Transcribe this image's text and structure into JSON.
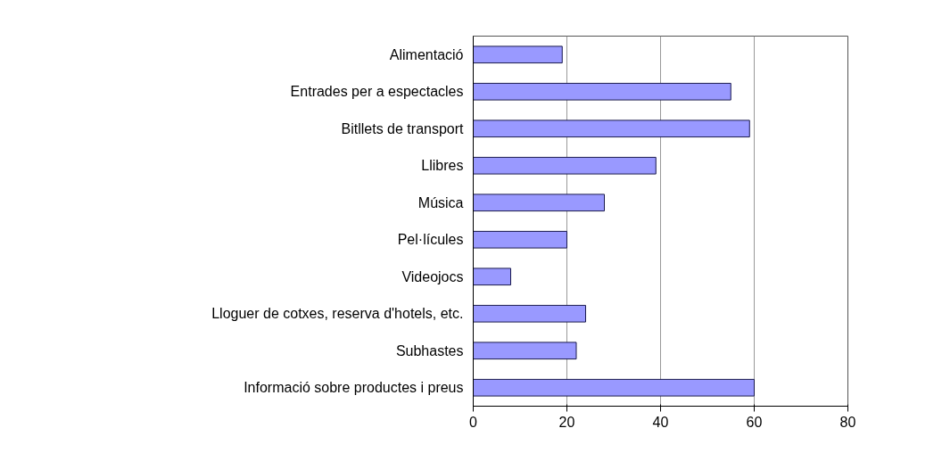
{
  "chart_data": {
    "type": "bar",
    "orientation": "horizontal",
    "categories": [
      "Alimentació",
      "Entrades per a espectacles",
      "Bitllets de transport",
      "Llibres",
      "Música",
      "Pel·lícules",
      "Videojocs",
      "Lloguer de cotxes, reserva d'hotels, etc.",
      "Subhastes",
      "Informació sobre productes i preus"
    ],
    "values": [
      19,
      55,
      59,
      39,
      28,
      20,
      8,
      24,
      22,
      60
    ],
    "color": "#9999ff",
    "xlim": [
      0,
      80
    ],
    "xticks": [
      0,
      20,
      40,
      60,
      80
    ],
    "grid": "x"
  }
}
